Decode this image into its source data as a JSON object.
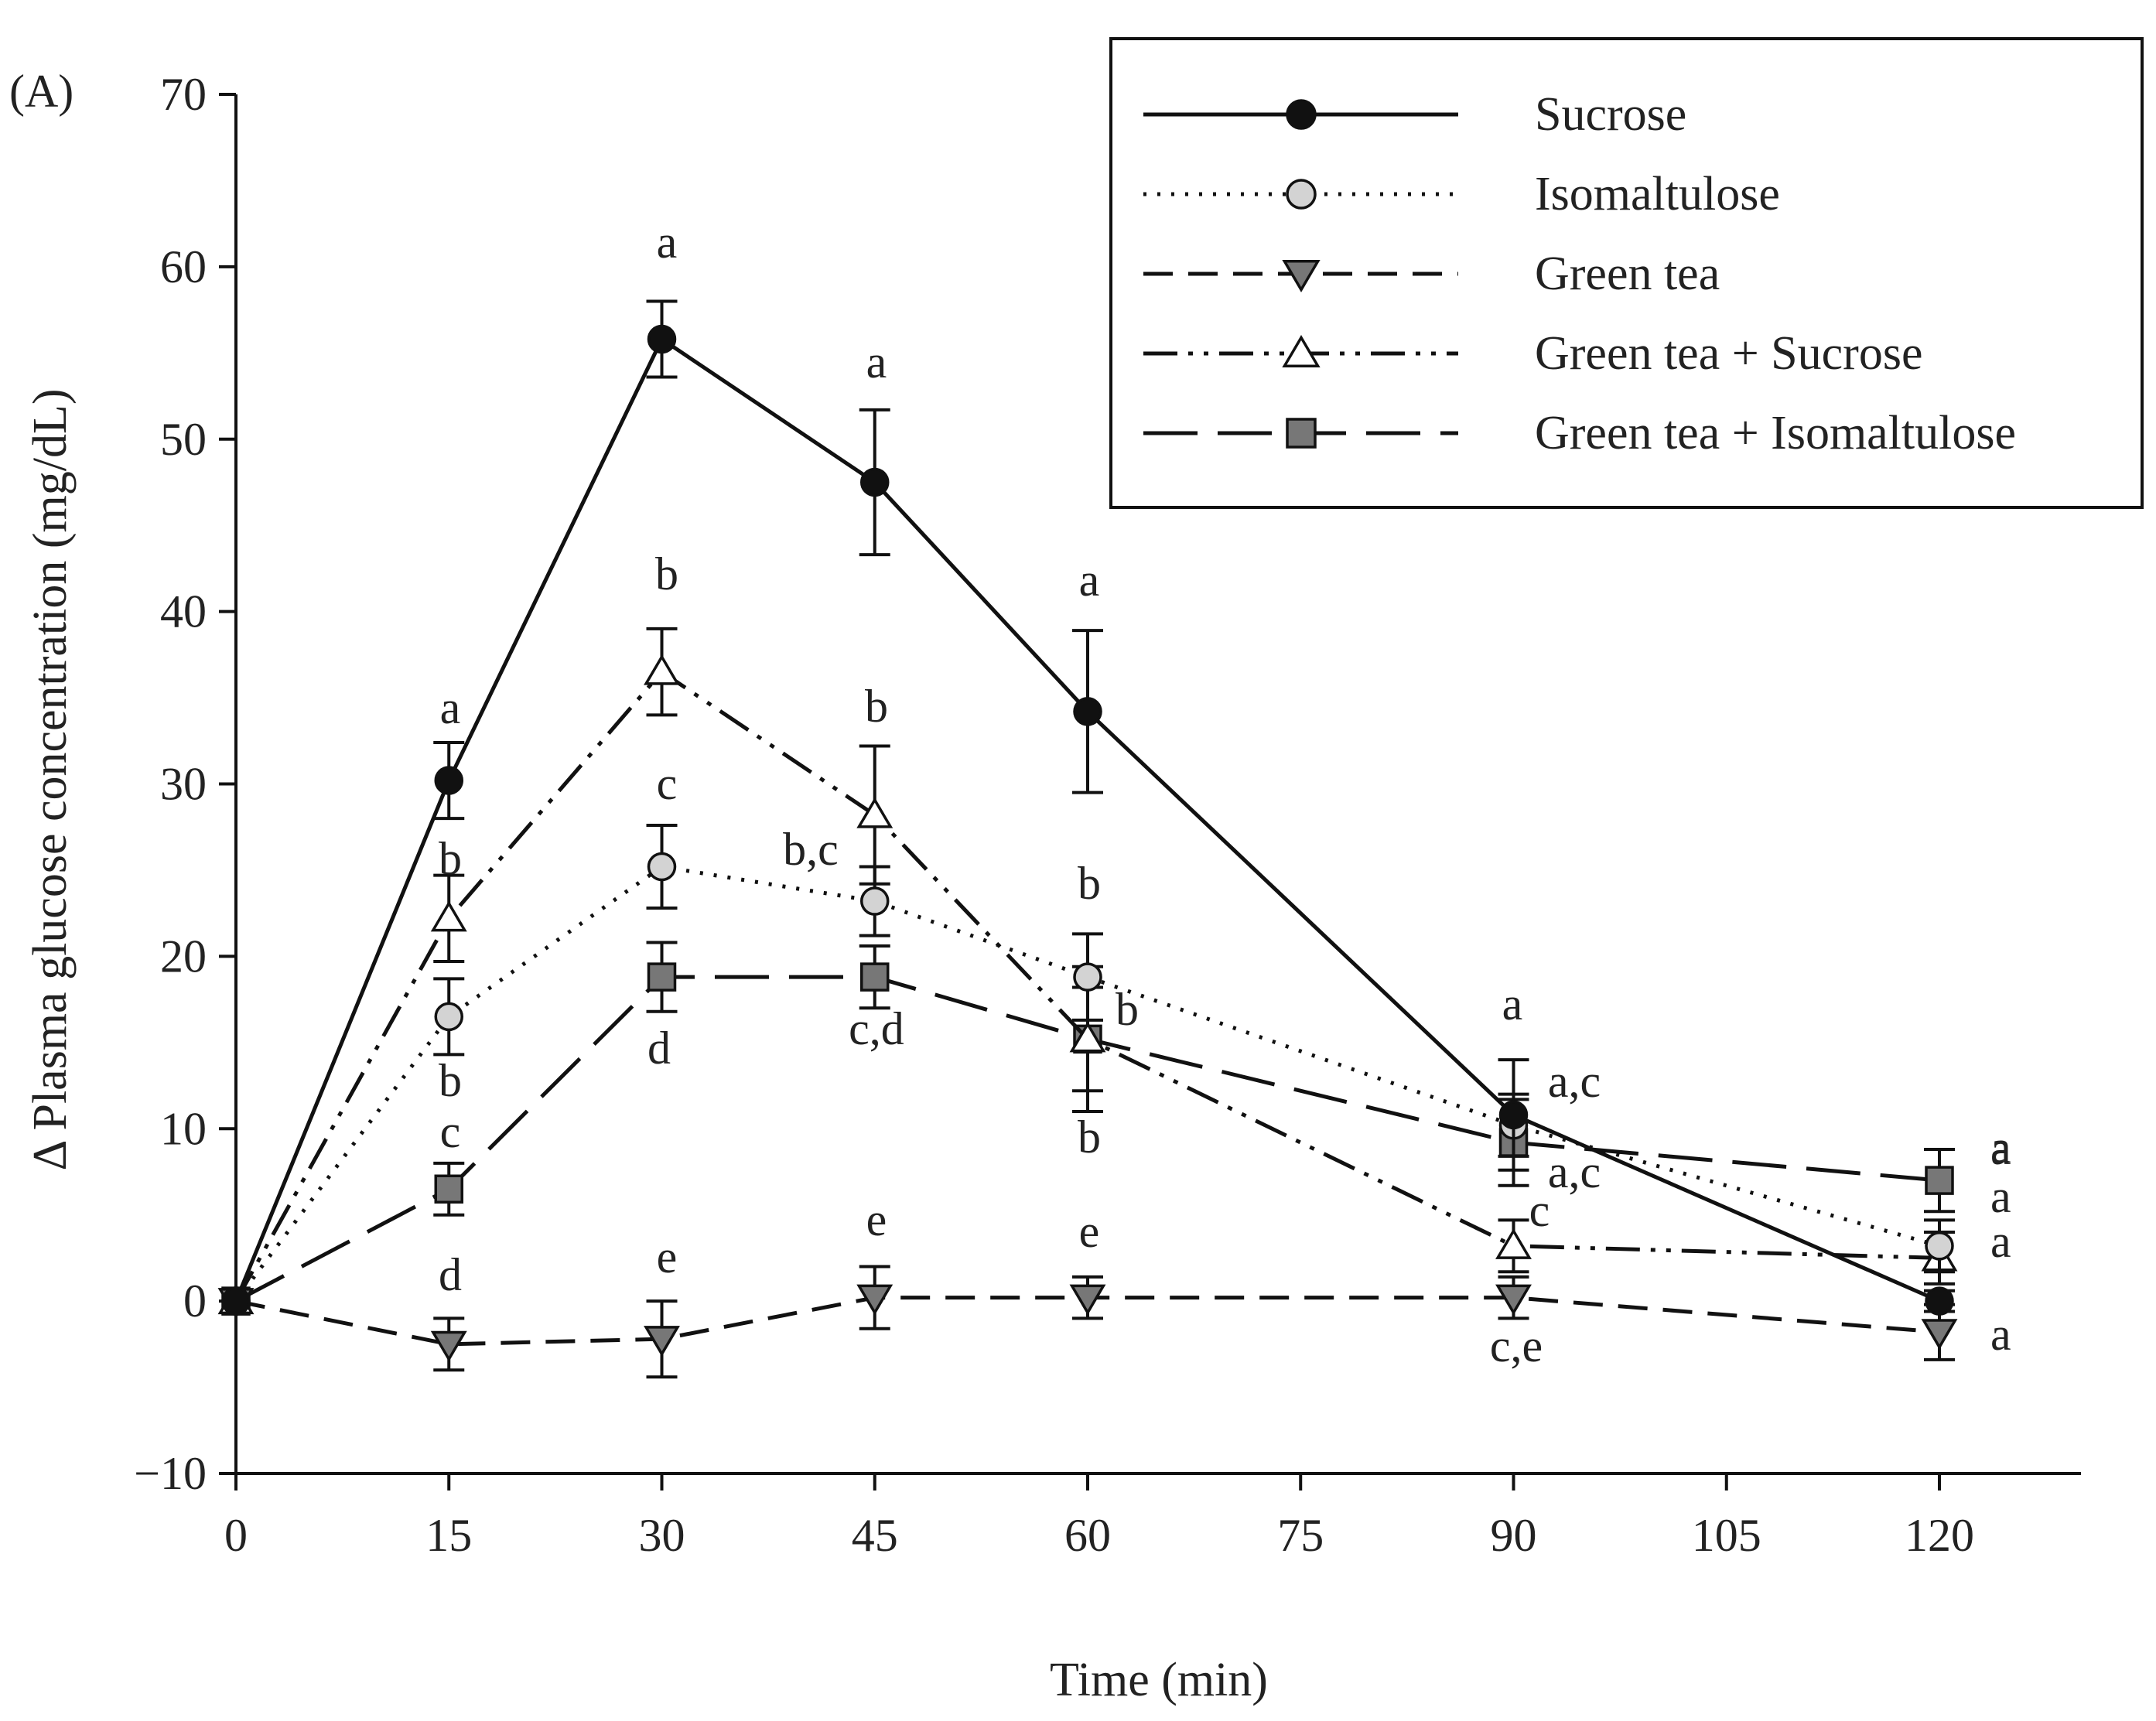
{
  "panel_label": "(A)",
  "chart_data": {
    "type": "line",
    "title": "",
    "xlabel": "Time (min)",
    "ylabel": "Δ Plasma glucose concentration (mg/dL)",
    "xlim": [
      0,
      130
    ],
    "ylim": [
      -10,
      70
    ],
    "x_ticks": [
      0,
      15,
      30,
      45,
      60,
      75,
      90,
      105,
      120
    ],
    "y_ticks": [
      -10,
      0,
      10,
      20,
      30,
      40,
      50,
      60,
      70
    ],
    "y_tick_labels": [
      "−10",
      "0",
      "10",
      "20",
      "30",
      "40",
      "50",
      "60",
      "70"
    ],
    "grid": false,
    "legend_position": "top-right",
    "series": [
      {
        "name": "Sucrose",
        "color": "#111111",
        "marker": "circle",
        "marker_fill": "#111111",
        "line_style": "solid",
        "x": [
          0,
          15,
          30,
          45,
          60,
          90,
          120
        ],
        "values": [
          0,
          30.2,
          55.8,
          47.5,
          34.2,
          10.8,
          0
        ],
        "errors": [
          0,
          2.2,
          2.2,
          4.2,
          4.7,
          3.2,
          0.6
        ],
        "sig_labels": [
          "",
          "a",
          "a",
          "a",
          "a",
          "a",
          "a"
        ]
      },
      {
        "name": "Isomaltulose",
        "color": "#111111",
        "marker": "circle",
        "marker_fill": "#d3d3d3",
        "line_style": "dotted",
        "x": [
          0,
          15,
          30,
          45,
          60,
          90,
          120
        ],
        "values": [
          0,
          16.5,
          25.2,
          23.2,
          18.8,
          10.2,
          3.2
        ],
        "errors": [
          0,
          2.2,
          2.4,
          2.0,
          2.5,
          1.8,
          1.5
        ],
        "sig_labels": [
          "",
          "b",
          "c",
          "b,c",
          "b",
          "a,c",
          "a"
        ]
      },
      {
        "name": "Green tea",
        "color": "#111111",
        "marker": "triangle-down",
        "marker_fill": "#777777",
        "line_style": "dashed",
        "x": [
          0,
          15,
          30,
          45,
          60,
          90,
          120
        ],
        "values": [
          0,
          -2.5,
          -2.2,
          0.2,
          0.2,
          0.2,
          -1.8
        ],
        "errors": [
          0,
          1.5,
          2.2,
          1.8,
          1.2,
          1.2,
          1.6
        ],
        "sig_labels": [
          "",
          "d",
          "e",
          "e",
          "e",
          "c,e",
          "a"
        ]
      },
      {
        "name": "Green tea + Sucrose",
        "color": "#111111",
        "marker": "triangle-up",
        "marker_fill": "#ffffff",
        "line_style": "dash-dot-dot",
        "x": [
          0,
          15,
          30,
          45,
          60,
          90,
          120
        ],
        "values": [
          0,
          22.2,
          36.5,
          28.2,
          15.2,
          3.2,
          2.5
        ],
        "errors": [
          0,
          2.5,
          2.5,
          4.0,
          3.0,
          1.5,
          1.5
        ],
        "sig_labels": [
          "",
          "b",
          "b",
          "b",
          "b",
          "c",
          "a"
        ]
      },
      {
        "name": "Green tea + Isomaltulose",
        "color": "#111111",
        "marker": "square",
        "marker_fill": "#777777",
        "line_style": "long-dash",
        "x": [
          0,
          15,
          30,
          45,
          60,
          90,
          120
        ],
        "values": [
          0,
          6.5,
          18.8,
          18.8,
          15.2,
          9.2,
          7.0
        ],
        "errors": [
          0,
          1.5,
          2.0,
          1.8,
          4.2,
          2.5,
          1.8
        ],
        "sig_labels": [
          "",
          "c",
          "d",
          "c,d",
          "b",
          "a,c",
          "a"
        ]
      }
    ]
  }
}
